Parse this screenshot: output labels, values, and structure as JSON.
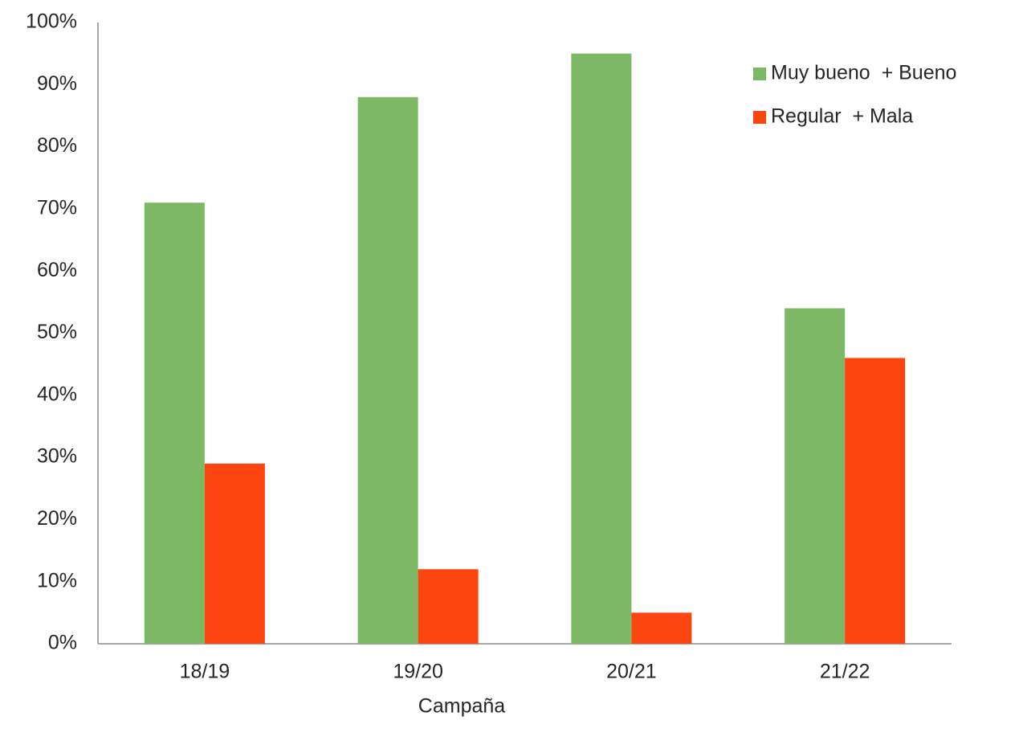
{
  "chart_data": {
    "type": "bar",
    "categories": [
      "18/19",
      "19/20",
      "20/21",
      "21/22"
    ],
    "series": [
      {
        "name": "Muy bueno  + Bueno",
        "color": "#7db964",
        "values": [
          71,
          88,
          95,
          54
        ]
      },
      {
        "name": "Regular  + Mala",
        "color": "#fc4511",
        "values": [
          29,
          12,
          5,
          46
        ]
      }
    ],
    "x_label": "Campaña",
    "ylim": [
      0,
      100
    ],
    "yticks": [
      {
        "value": 0,
        "label": "0%"
      },
      {
        "value": 10,
        "label": "10%"
      },
      {
        "value": 20,
        "label": "20%"
      },
      {
        "value": 30,
        "label": "30%"
      },
      {
        "value": 40,
        "label": "40%"
      },
      {
        "value": 50,
        "label": "50%"
      },
      {
        "value": 60,
        "label": "60%"
      },
      {
        "value": 70,
        "label": "70%"
      },
      {
        "value": 80,
        "label": "80%"
      },
      {
        "value": 90,
        "label": "90%"
      },
      {
        "value": 100,
        "label": "100%"
      }
    ],
    "grid": false,
    "legend": "top-right"
  }
}
